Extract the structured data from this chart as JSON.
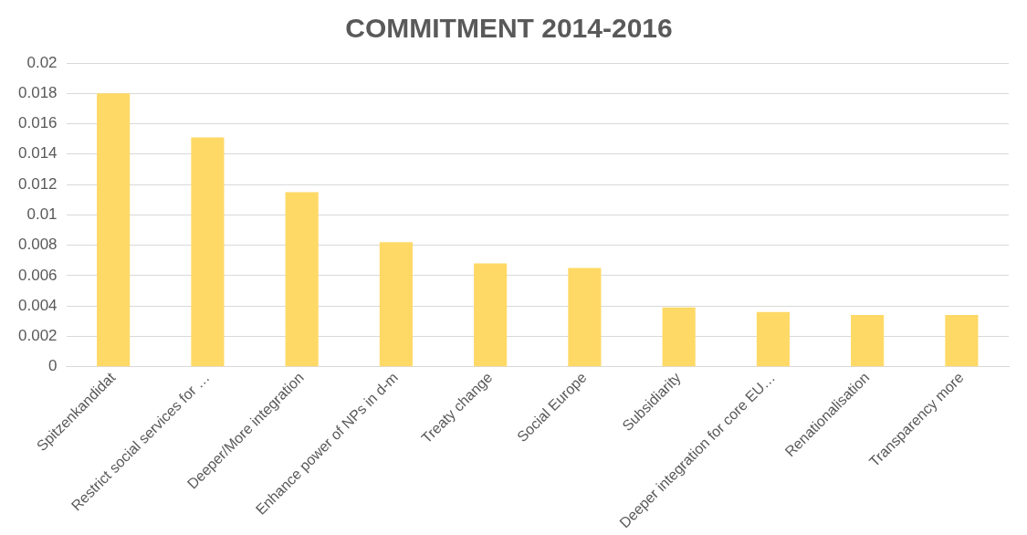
{
  "chart_data": {
    "type": "bar",
    "title": "COMMITMENT 2014-2016",
    "categories": [
      "Spitzenkandidat",
      "Restrict social services for …",
      "Deeper/More integration",
      "Enhance power of NPs in d-m",
      "Treaty change",
      "Social Europe",
      "Subsidiarity",
      "Deeper integration for core EU…",
      "Renationalisation",
      "Transparency more"
    ],
    "values": [
      0.018,
      0.0151,
      0.0115,
      0.0082,
      0.0068,
      0.0065,
      0.0039,
      0.0036,
      0.0034,
      0.0034
    ],
    "color": "#ffd966",
    "ylim": [
      0,
      0.02
    ],
    "yticks": [
      0,
      0.002,
      0.004,
      0.006,
      0.008,
      0.01,
      0.012,
      0.014,
      0.016,
      0.018,
      0.02
    ],
    "grid": "y",
    "legend": false
  }
}
